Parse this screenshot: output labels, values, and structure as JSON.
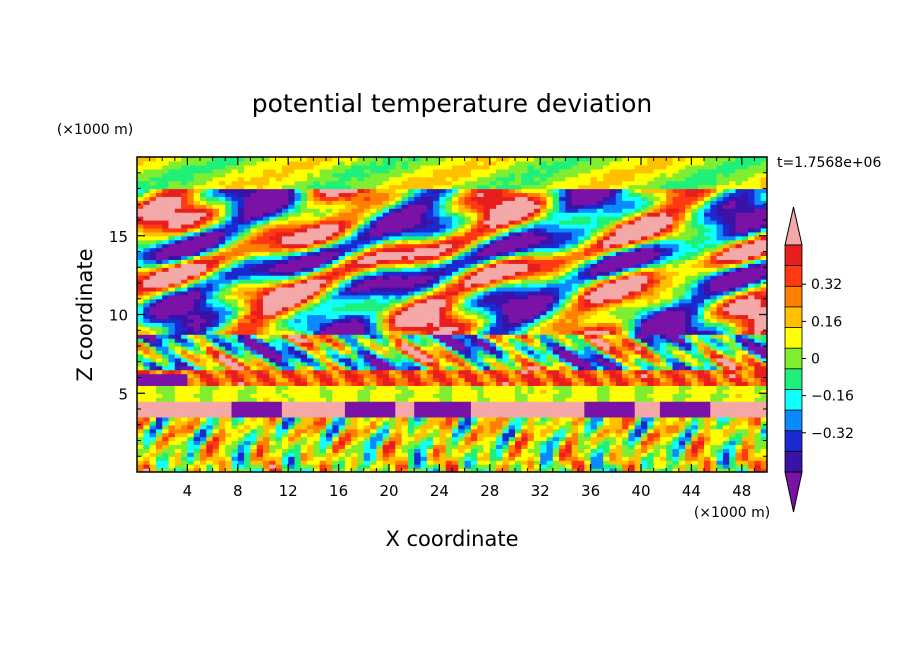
{
  "chart_data": {
    "type": "heatmap",
    "title": "potential temperature deviation",
    "xlabel": "X coordinate",
    "ylabel": "Z coordinate",
    "x_unit": "(×1000 m)",
    "y_unit": "(×1000 m)",
    "time_label": "t=1.7568e+06",
    "xlim": [
      0,
      50
    ],
    "ylim": [
      0,
      20
    ],
    "x_ticks": [
      4,
      8,
      12,
      16,
      20,
      24,
      28,
      32,
      36,
      40,
      44,
      48
    ],
    "y_ticks": [
      5,
      10,
      15
    ],
    "colorbar": {
      "levels": [
        -0.48,
        -0.4,
        -0.32,
        -0.24,
        -0.16,
        -0.08,
        0,
        0.08,
        0.16,
        0.24,
        0.32,
        0.4,
        0.48
      ],
      "labels": [
        "0.32",
        "0.16",
        "0",
        "−0.16",
        "−0.32"
      ],
      "label_values": [
        0.32,
        0.16,
        0,
        -0.16,
        -0.32
      ],
      "colors": [
        "#7b12a8",
        "#3a12a8",
        "#1a2ad0",
        "#0a8aff",
        "#10ffff",
        "#1ff07a",
        "#80ee30",
        "#ffff00",
        "#ffc000",
        "#ff8000",
        "#ff3a10",
        "#e81e1e",
        "#f5a8a8"
      ],
      "extend": "both"
    },
    "layers": [
      {
        "z": [
          0,
          3.5
        ],
        "pattern": "convective plumes",
        "mean_value": 0.0
      },
      {
        "z": [
          3.5,
          4.4
        ],
        "pattern": "low band with cold blobs",
        "mean_value": 0.4
      },
      {
        "z": [
          4.4,
          5.4
        ],
        "pattern": "neutral band",
        "mean_value": 0.05
      },
      {
        "z": [
          5.4,
          6.6
        ],
        "pattern": "warm band",
        "mean_value": 0.3
      },
      {
        "z": [
          6.6,
          8.8
        ],
        "pattern": "mixed warm/cold",
        "mean_value": -0.2
      },
      {
        "z": [
          8.8,
          18
        ],
        "pattern": "gravity waves",
        "mean_value": 0.0
      },
      {
        "z": [
          18,
          20
        ],
        "pattern": "upper smooth layer",
        "mean_value": 0.04
      }
    ]
  }
}
